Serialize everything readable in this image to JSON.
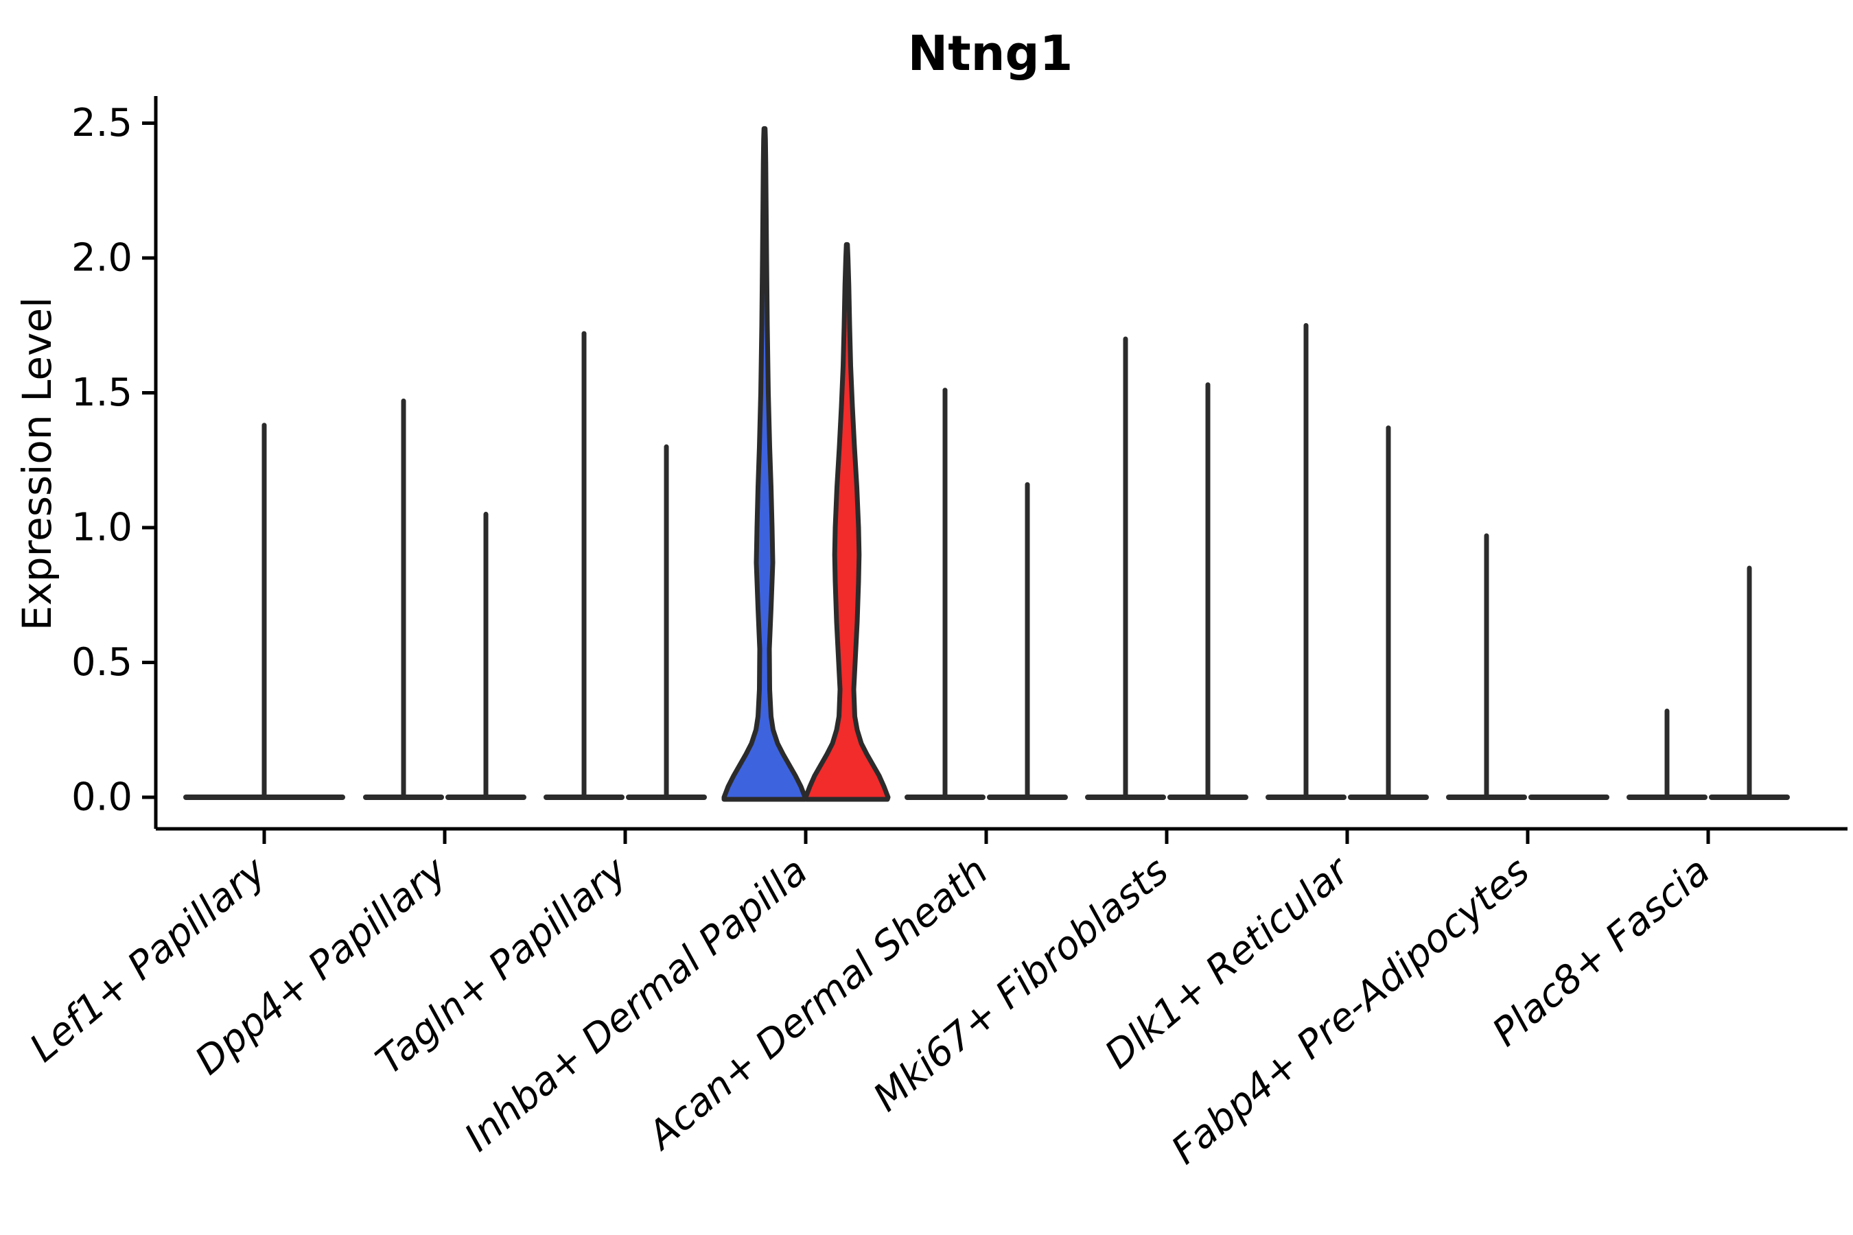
{
  "figure": {
    "title": "Ntng1",
    "ylabel": "Expression Level"
  },
  "chart_data": {
    "type": "violin",
    "title": "Ntng1",
    "xlabel": "",
    "ylabel": "Expression Level",
    "ylim": [
      -0.12,
      2.6
    ],
    "grid": false,
    "legend": "none",
    "yticks": [
      {
        "value": 0.0,
        "label": "0.0"
      },
      {
        "value": 0.5,
        "label": "0.5"
      },
      {
        "value": 1.0,
        "label": "1.0"
      },
      {
        "value": 1.5,
        "label": "1.5"
      },
      {
        "value": 2.0,
        "label": "2.0"
      },
      {
        "value": 2.5,
        "label": "2.5"
      }
    ],
    "colors": {
      "outline": "#2b2b2b",
      "axis": "#000000",
      "blue_fill": "#3d63df",
      "red_fill": "#f22b2b"
    },
    "categories": [
      {
        "label": "Lef1+ Papillary",
        "violins": [
          {
            "position": "center",
            "shape": "spike",
            "max": 1.39,
            "width": "double"
          }
        ]
      },
      {
        "label": "Dpp4+ Papillary",
        "violins": [
          {
            "position": "left",
            "shape": "spike",
            "max": 1.48
          },
          {
            "position": "right",
            "shape": "spike",
            "max": 1.06
          }
        ]
      },
      {
        "label": "Tagln+ Papillary",
        "violins": [
          {
            "position": "left",
            "shape": "spike",
            "max": 1.73
          },
          {
            "position": "right",
            "shape": "spike",
            "max": 1.31
          }
        ]
      },
      {
        "label": "Inhba+ Dermal Papilla",
        "violins": [
          {
            "position": "left",
            "shape": "density",
            "max": 2.48,
            "fill": "#3d63df",
            "profile": [
              [
                0,
                59
              ],
              [
                0.04,
                53
              ],
              [
                0.08,
                45
              ],
              [
                0.12,
                36
              ],
              [
                0.16,
                27
              ],
              [
                0.2,
                19
              ],
              [
                0.25,
                12.5
              ],
              [
                0.3,
                9.5
              ],
              [
                0.4,
                7.5
              ],
              [
                0.55,
                7
              ],
              [
                0.7,
                9.5
              ],
              [
                0.87,
                12
              ],
              [
                1.0,
                11
              ],
              [
                1.15,
                9.5
              ],
              [
                1.3,
                7.5
              ],
              [
                1.5,
                5.5
              ],
              [
                1.75,
                4
              ],
              [
                2.0,
                3
              ],
              [
                2.2,
                2.3
              ],
              [
                2.35,
                1.8
              ],
              [
                2.44,
                1.3
              ],
              [
                2.48,
                0.8
              ]
            ]
          },
          {
            "position": "right",
            "shape": "density",
            "max": 2.05,
            "fill": "#f22b2b",
            "profile": [
              [
                0,
                60
              ],
              [
                0.04,
                54
              ],
              [
                0.08,
                47
              ],
              [
                0.12,
                38
              ],
              [
                0.16,
                29
              ],
              [
                0.2,
                21
              ],
              [
                0.25,
                15
              ],
              [
                0.3,
                11.5
              ],
              [
                0.4,
                10
              ],
              [
                0.5,
                12
              ],
              [
                0.65,
                15
              ],
              [
                0.8,
                17
              ],
              [
                0.9,
                17.8
              ],
              [
                1.0,
                17
              ],
              [
                1.15,
                14.5
              ],
              [
                1.3,
                11
              ],
              [
                1.45,
                8
              ],
              [
                1.6,
                5.5
              ],
              [
                1.75,
                4
              ],
              [
                1.9,
                2.8
              ],
              [
                2.0,
                1.6
              ],
              [
                2.05,
                0.8
              ]
            ]
          }
        ]
      },
      {
        "label": "Acan+ Dermal Sheath",
        "violins": [
          {
            "position": "left",
            "shape": "spike",
            "max": 1.52
          },
          {
            "position": "right",
            "shape": "spike",
            "max": 1.17
          }
        ]
      },
      {
        "label": "Mki67+ Fibroblasts",
        "violins": [
          {
            "position": "left",
            "shape": "spike",
            "max": 1.71
          },
          {
            "position": "right",
            "shape": "spike",
            "max": 1.54
          }
        ]
      },
      {
        "label": "Dlk1+ Reticular",
        "violins": [
          {
            "position": "left",
            "shape": "spike",
            "max": 1.76
          },
          {
            "position": "right",
            "shape": "spike",
            "max": 1.38
          }
        ]
      },
      {
        "label": "Fabp4+ Pre-Adipocytes",
        "violins": [
          {
            "position": "left",
            "shape": "spike",
            "max": 0.98
          },
          {
            "position": "right",
            "shape": "flat",
            "max": 0.0
          }
        ]
      },
      {
        "label": "Plac8+ Fascia",
        "violins": [
          {
            "position": "left",
            "shape": "spike",
            "max": 0.33
          },
          {
            "position": "right",
            "shape": "spike",
            "max": 0.86
          }
        ]
      }
    ]
  }
}
